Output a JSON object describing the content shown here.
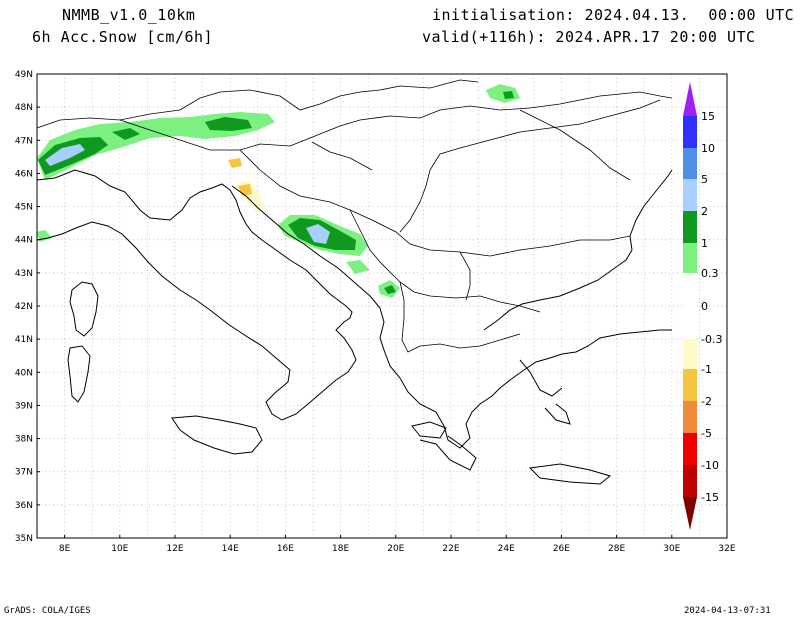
{
  "header": {
    "model": "NMMB_v1.0_10km",
    "variable": "6h Acc.Snow [cm/6h]",
    "init": "initialisation: 2024.04.13.  00:00 UTC",
    "valid": "valid(+116h): 2024.APR.17 20:00 UTC"
  },
  "footer": {
    "left": "GrADS: COLA/IGES",
    "right": "2024-04-13-07:31"
  },
  "axes": {
    "lat_labels": [
      "49N",
      "48N",
      "47N",
      "46N",
      "45N",
      "44N",
      "43N",
      "42N",
      "41N",
      "40N",
      "39N",
      "38N",
      "37N",
      "36N",
      "35N"
    ],
    "lon_labels": [
      "8E",
      "10E",
      "12E",
      "14E",
      "16E",
      "18E",
      "20E",
      "22E",
      "24E",
      "26E",
      "28E",
      "30E",
      "32E"
    ],
    "grid": true
  },
  "colorbar": {
    "labels": [
      "15",
      "10",
      "5",
      "2",
      "1",
      "0.3",
      "0",
      "-0.3",
      "-1",
      "-2",
      "-5",
      "-10",
      "-15"
    ],
    "colors": {
      "purple": "#a020f0",
      "blue": "#3030ff",
      "mid_blue": "#4f8fe8",
      "light_blue": "#a8d0ff",
      "dark_green": "#0f9a1f",
      "light_green": "#7cf080",
      "white": "#ffffff",
      "cream": "#fffbc8",
      "yellow": "#f5c542",
      "orange": "#f28a3c",
      "red": "#f00000",
      "dark_red": "#c00000",
      "maroon": "#800000"
    }
  }
}
